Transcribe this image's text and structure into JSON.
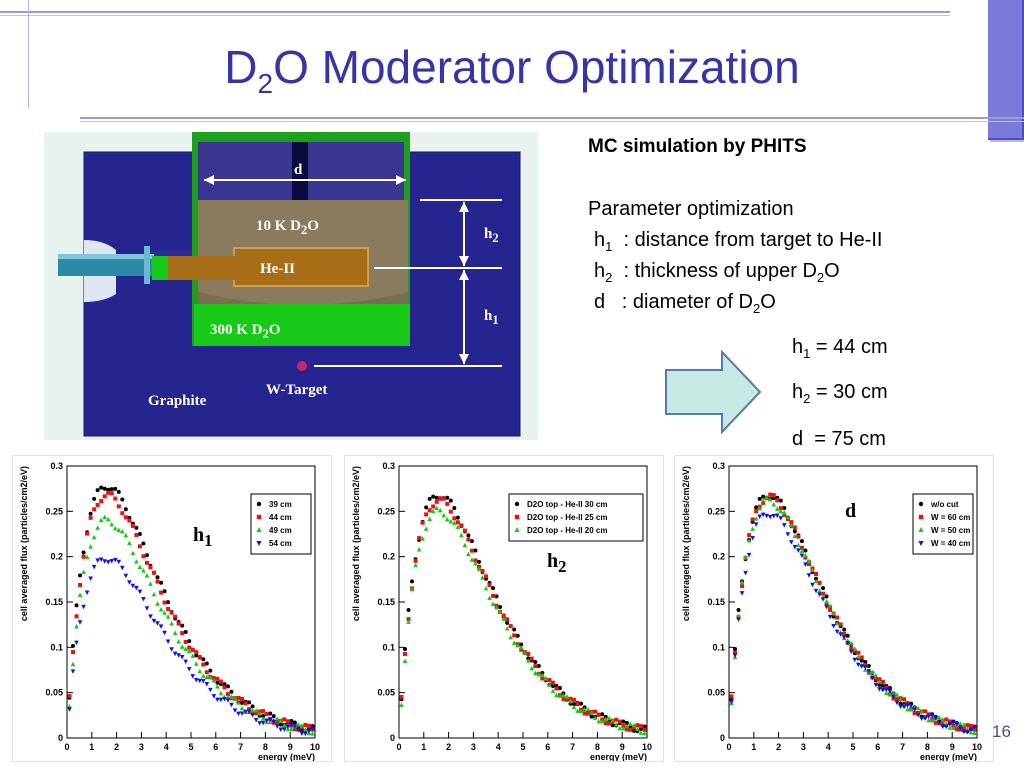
{
  "slide": {
    "title_main": "D",
    "title_sub": "2",
    "title_rest": "O Moderator Optimization",
    "page_number": "16"
  },
  "diagram": {
    "label_d": "d",
    "label_10k": "10 K D",
    "label_10k_sub": "2",
    "label_10k_end": "O",
    "label_heii": "He-II",
    "label_300k": "300 K D",
    "label_300k_sub": "2",
    "label_300k_end": "O",
    "label_h2": "h",
    "label_h2_sub": "2",
    "label_h1": "h",
    "label_h1_sub": "1",
    "label_wtarget": "W-Target",
    "label_graphite": "Graphite"
  },
  "description": {
    "heading": "MC simulation by PHITS",
    "param_title": "Parameter optimization",
    "p1_a": "h",
    "p1_sub": "1",
    "p1_b": "  : distance from target to He-II",
    "p2_a": "h",
    "p2_sub": "2",
    "p2_b": "  : thickness of upper D",
    "p2_sub2": "2",
    "p2_c": "O",
    "p3_a": "d   : diameter of D",
    "p3_sub": "2",
    "p3_b": "O"
  },
  "result": {
    "r1_a": "h",
    "r1_sub": "1",
    "r1_b": " = 44 cm",
    "r2_a": "h",
    "r2_sub": "2",
    "r2_b": " = 30 cm",
    "r3": "d  = 75 cm"
  },
  "colors": {
    "title": "#3535a8",
    "graphite": "#26248e",
    "green": "#19c919",
    "d2o_cold": "#8a7a5e",
    "heii": "#a86e17",
    "arrow": "#c8e8e4"
  },
  "chart_data": [
    {
      "type": "scatter",
      "panel_label": "h1",
      "xlabel": "energy (meV)",
      "ylabel": "cell averaged flux (particles/cm2/eV)",
      "xlim": [
        0,
        10
      ],
      "ylim": [
        0,
        0.3
      ],
      "x_ticks": [
        "0",
        "1",
        "2",
        "3",
        "4",
        "5",
        "6",
        "7",
        "8",
        "9",
        "10"
      ],
      "y_ticks": [
        "0.05",
        "0.1",
        "0.15",
        "0.2",
        "0.25",
        "0.3"
      ],
      "legend_position": "top-right",
      "series": [
        {
          "name": "39 cm",
          "color": "#000000",
          "marker": "circle",
          "peak": 0.278
        },
        {
          "name": "44 cm",
          "color": "#ee1111",
          "marker": "square",
          "peak": 0.268
        },
        {
          "name": "49 cm",
          "color": "#11cc11",
          "marker": "triangle-up",
          "peak": 0.24
        },
        {
          "name": "54 cm",
          "color": "#1111ee",
          "marker": "triangle-down",
          "peak": 0.198
        }
      ]
    },
    {
      "type": "scatter",
      "panel_label": "h2",
      "xlabel": "energy (meV)",
      "ylabel": "cell averaged flux (particles/cm2/eV)",
      "xlim": [
        0,
        10
      ],
      "ylim": [
        0,
        0.3
      ],
      "x_ticks": [
        "0",
        "1",
        "2",
        "3",
        "4",
        "5",
        "6",
        "7",
        "8",
        "9",
        "10"
      ],
      "y_ticks": [
        "0.05",
        "0.1",
        "0.15",
        "0.2",
        "0.25",
        "0.3"
      ],
      "legend_position": "top-right",
      "series": [
        {
          "name": "D2O top - He-II 30 cm",
          "color": "#000000",
          "marker": "circle",
          "peak": 0.268
        },
        {
          "name": "D2O top - He-II 25 cm",
          "color": "#ee1111",
          "marker": "square",
          "peak": 0.262
        },
        {
          "name": "D2O top - He-II 20 cm",
          "color": "#11cc11",
          "marker": "triangle-up",
          "peak": 0.25
        }
      ]
    },
    {
      "type": "scatter",
      "panel_label": "d",
      "xlabel": "energy (meV)",
      "ylabel": "cell averaged flux (particles/cm2/eV)",
      "xlim": [
        0,
        10
      ],
      "ylim": [
        0,
        0.3
      ],
      "x_ticks": [
        "0",
        "1",
        "2",
        "3",
        "4",
        "5",
        "6",
        "7",
        "8",
        "9",
        "10"
      ],
      "y_ticks": [
        "0.05",
        "0.1",
        "0.15",
        "0.2",
        "0.25",
        "0.3"
      ],
      "legend_position": "top-right",
      "series": [
        {
          "name": "w/o cut",
          "color": "#000000",
          "marker": "circle",
          "peak": 0.268
        },
        {
          "name": "W = 60 cm",
          "color": "#ee1111",
          "marker": "square",
          "peak": 0.266
        },
        {
          "name": "W = 50 cm",
          "color": "#11cc11",
          "marker": "triangle-up",
          "peak": 0.262
        },
        {
          "name": "W = 40 cm",
          "color": "#1111ee",
          "marker": "triangle-down",
          "peak": 0.248
        }
      ]
    }
  ]
}
